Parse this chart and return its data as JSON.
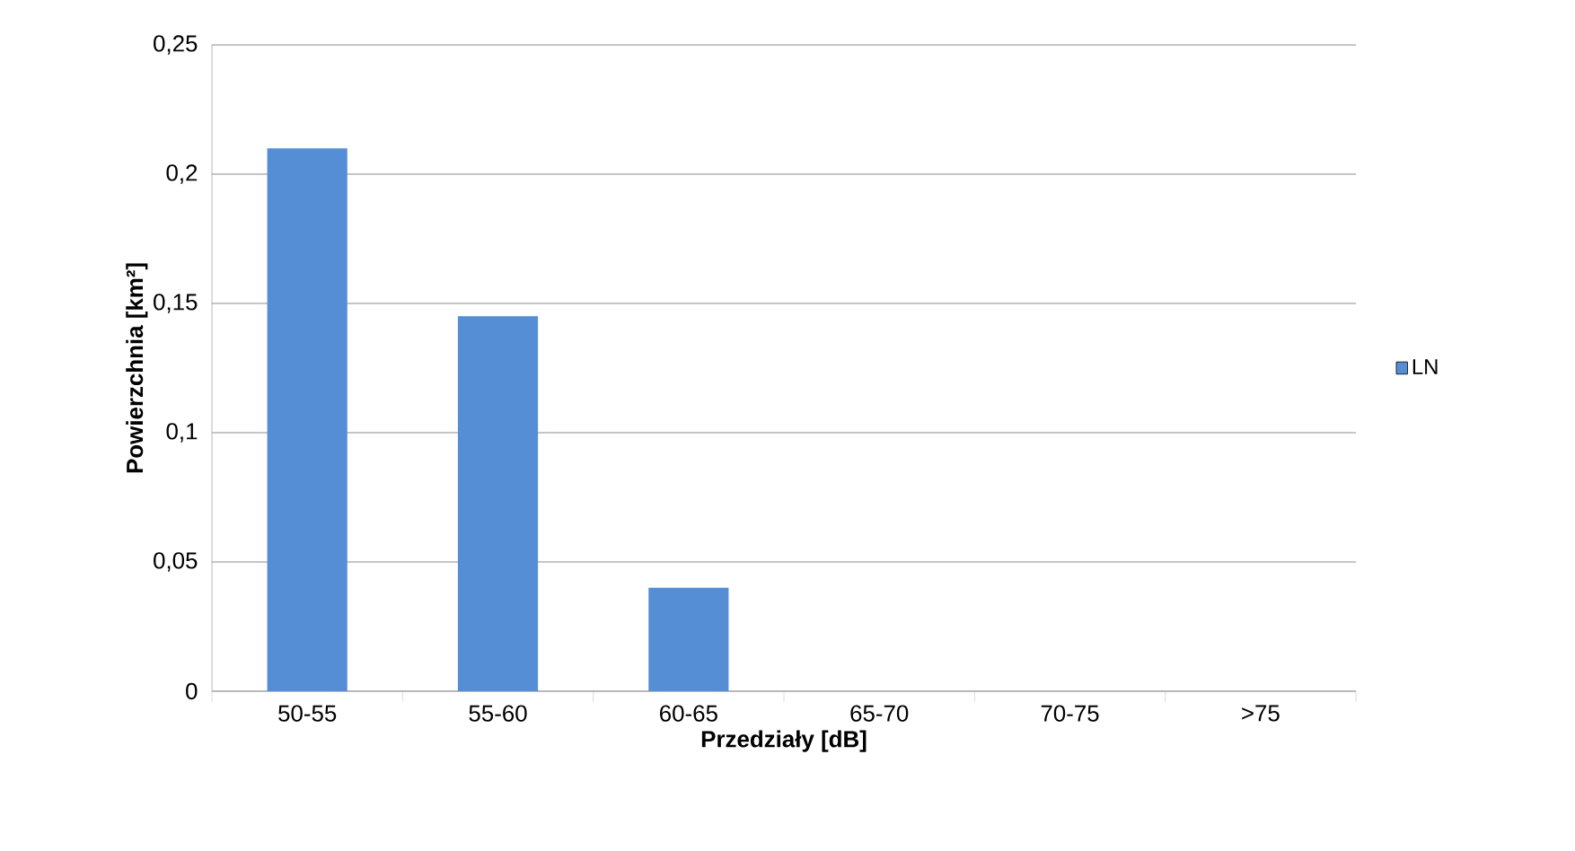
{
  "chart_data": {
    "type": "bar",
    "xlabel": "Przedziały [dB]",
    "ylabel": "Powierzchnia [km²]",
    "categories": [
      "50-55",
      "55-60",
      "60-65",
      "65-70",
      "70-75",
      ">75"
    ],
    "series": [
      {
        "name": "LN",
        "color": "#558ed5",
        "values": [
          0.21,
          0.145,
          0.04,
          0,
          0,
          0
        ]
      }
    ],
    "ylim": [
      0,
      0.25
    ],
    "yticks": [
      0,
      {
        "value": 0.05,
        "label": "0,05"
      },
      {
        "value": 0.1,
        "label": "0,1"
      },
      {
        "value": 0.15,
        "label": "0,15"
      },
      {
        "value": 0.2,
        "label": "0,2"
      },
      {
        "value": 0.25,
        "label": "0,25"
      }
    ],
    "grid": "y",
    "legend": "right"
  }
}
